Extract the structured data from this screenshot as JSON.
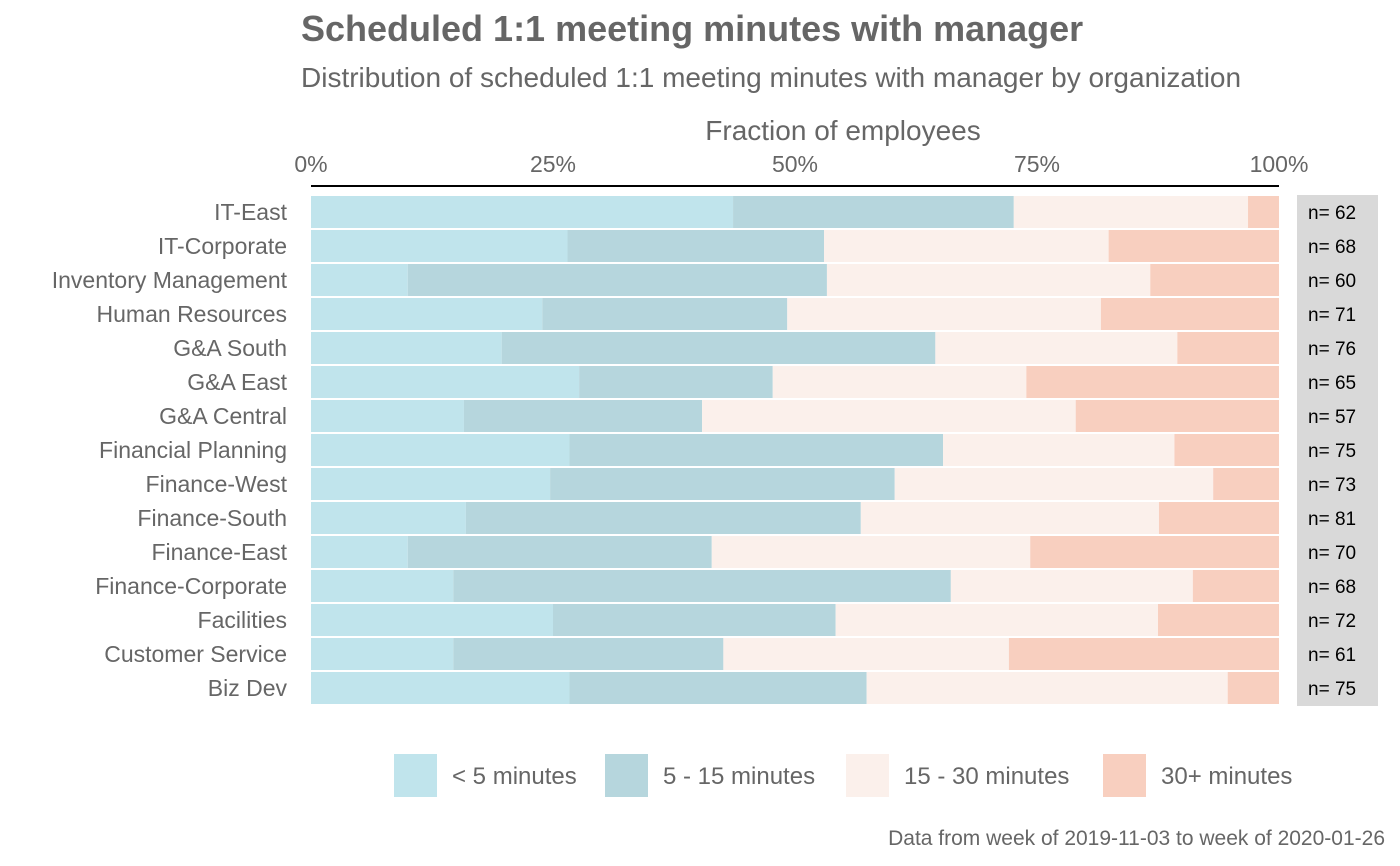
{
  "colors": {
    "lt5": "#c0e4ec",
    "5to15": "#b6d6dd",
    "15to30": "#fbf0eb",
    "30plus": "#f8cfbf",
    "text": "#666666",
    "n_panel": "#d9d9d9"
  },
  "chart_data": {
    "type": "bar",
    "orientation": "horizontal",
    "stacked": "percent",
    "title": "Scheduled 1:1 meeting minutes with manager",
    "subtitle": "Distribution of scheduled 1:1 meeting minutes with manager by organization",
    "xlabel": "Fraction of employees",
    "ylabel": "",
    "xlim": [
      0,
      1
    ],
    "x_ticks": [
      "0%",
      "25%",
      "50%",
      "75%",
      "100%"
    ],
    "x_axis_position": "top",
    "grid": false,
    "legend_position": "bottom",
    "caption": "Data from week of 2019-11-03 to week of 2020-01-26",
    "categories": [
      "IT-East",
      "IT-Corporate",
      "Inventory Management",
      "Human Resources",
      "G&A South",
      "G&A East",
      "G&A Central",
      "Financial Planning",
      "Finance-West",
      "Finance-South",
      "Finance-East",
      "Finance-Corporate",
      "Facilities",
      "Customer Service",
      "Biz Dev"
    ],
    "n_labels": [
      "n= 62",
      "n= 68",
      "n= 60",
      "n= 71",
      "n= 76",
      "n= 65",
      "n= 57",
      "n= 75",
      "n= 73",
      "n= 81",
      "n= 70",
      "n= 68",
      "n= 72",
      "n= 61",
      "n= 75"
    ],
    "series": [
      {
        "name": "< 5 minutes",
        "color_key": "lt5",
        "values": [
          0.436,
          0.265,
          0.1,
          0.239,
          0.197,
          0.277,
          0.158,
          0.267,
          0.247,
          0.16,
          0.1,
          0.147,
          0.25,
          0.147,
          0.267
        ]
      },
      {
        "name": "5 - 15 minutes",
        "color_key": "5to15",
        "values": [
          0.29,
          0.265,
          0.433,
          0.253,
          0.448,
          0.2,
          0.246,
          0.386,
          0.356,
          0.408,
          0.314,
          0.514,
          0.292,
          0.279,
          0.307
        ]
      },
      {
        "name": "15 - 30 minutes",
        "color_key": "15to30",
        "values": [
          0.242,
          0.294,
          0.334,
          0.324,
          0.25,
          0.262,
          0.386,
          0.239,
          0.329,
          0.308,
          0.329,
          0.25,
          0.333,
          0.295,
          0.373
        ]
      },
      {
        "name": "30+ minutes",
        "color_key": "30plus",
        "values": [
          0.032,
          0.176,
          0.133,
          0.184,
          0.105,
          0.261,
          0.21,
          0.108,
          0.068,
          0.124,
          0.257,
          0.089,
          0.125,
          0.279,
          0.053
        ]
      }
    ]
  }
}
